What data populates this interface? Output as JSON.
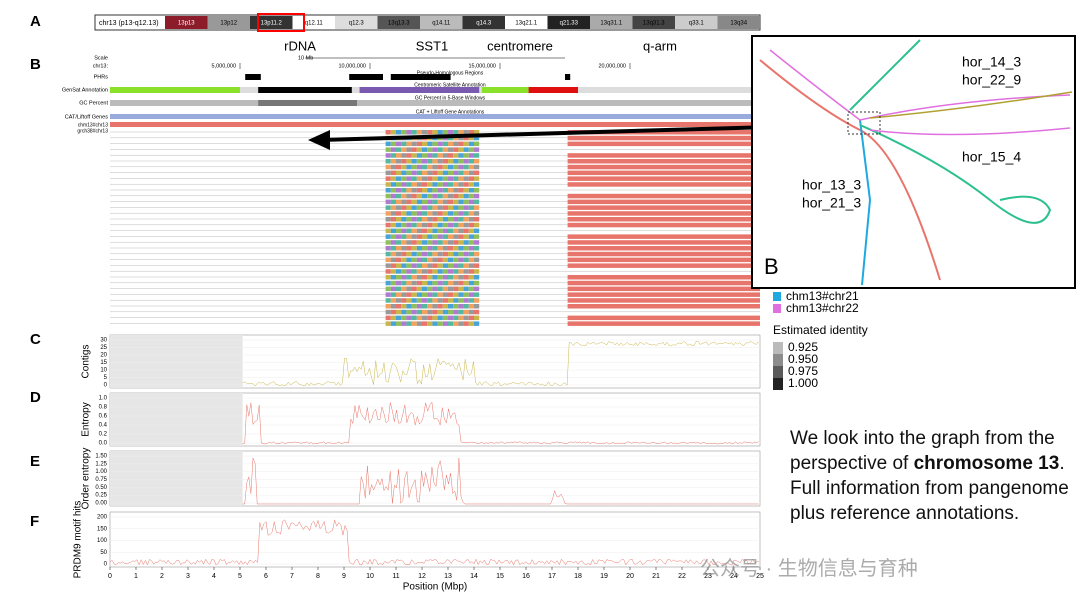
{
  "panels": [
    "A",
    "B",
    "C",
    "D",
    "E",
    "F"
  ],
  "ideogram": {
    "label": "chr13 (p13-q12.13)",
    "bands": [
      "13p13",
      "13p12",
      "13p11.2",
      "q12.11",
      "q12.3",
      "13q13.3",
      "q14.11",
      "q14.3",
      "13q21.1",
      "q21.33",
      "13q31.1",
      "13q31.3",
      "q33.1",
      "13q34"
    ]
  },
  "regions": [
    "rDNA",
    "SST1",
    "centromere",
    "q-arm"
  ],
  "browser": {
    "tracks": [
      "Scale",
      "chr13:",
      "PHRs",
      "GenSat Annotation",
      "GC Percent",
      "CAT/Liftoff Genes"
    ],
    "scale_label": "10 Mb",
    "ticks": [
      {
        "value": 5,
        "label": "5,000,000"
      },
      {
        "value": 10,
        "label": "10,000,000"
      },
      {
        "value": 15,
        "label": "15,000,000"
      },
      {
        "value": 20,
        "label": "20,000,000"
      }
    ],
    "annotations": [
      "Pseudo-Homologous Regions",
      "Centromeric Satellite Annotation",
      "GC Percent in 5-Base Windows",
      "CAT + Liftoff Gene Annotations"
    ],
    "samples": [
      "chm13#chr13",
      "grch38#chr13"
    ]
  },
  "inset": {
    "label": "B",
    "nodes": [
      "hor_14_3",
      "hor_22_9",
      "hor_15_4",
      "hor_13_3",
      "hor_21_3"
    ]
  },
  "legend": {
    "series": [
      {
        "name": "chm13#chr21",
        "color": "#1fa9e1"
      },
      {
        "name": "chm13#chr22",
        "color": "#e070e0"
      }
    ],
    "identity_title": "Estimated identity",
    "identity_levels": [
      {
        "label": "0.925",
        "color": "#bbbbbb"
      },
      {
        "label": "0.950",
        "color": "#8c8c8c"
      },
      {
        "label": "0.975",
        "color": "#5a5a5a"
      },
      {
        "label": "1.000",
        "color": "#222222"
      }
    ]
  },
  "plots": [
    {
      "ylabel": "Contigs",
      "yticks": [
        "0",
        "5",
        "10",
        "15",
        "20",
        "25",
        "30"
      ]
    },
    {
      "ylabel": "Entropy",
      "yticks": [
        "0.0",
        "0.2",
        "0.4",
        "0.6",
        "0.8",
        "1.0"
      ]
    },
    {
      "ylabel": "Order entropy",
      "yticks": [
        "0.00",
        "0.25",
        "0.50",
        "0.75",
        "1.00",
        "1.25",
        "1.50"
      ]
    },
    {
      "ylabel": "PRDM9 motif hits",
      "yticks": [
        "0",
        "50",
        "100",
        "150",
        "200"
      ]
    }
  ],
  "xaxis": {
    "title": "Position (Mbp)",
    "ticks": [
      0,
      1,
      2,
      3,
      4,
      5,
      6,
      7,
      8,
      9,
      10,
      11,
      12,
      13,
      14,
      15,
      16,
      17,
      18,
      19,
      20,
      21,
      22,
      23,
      24,
      25
    ]
  },
  "note": {
    "text_before": "We look into the graph from the perspective of ",
    "bold": "chromosome 13",
    "text_after": ". Full information from pangenome plus reference annotations."
  },
  "watermark": "公众号 · 生物信息与育种"
}
